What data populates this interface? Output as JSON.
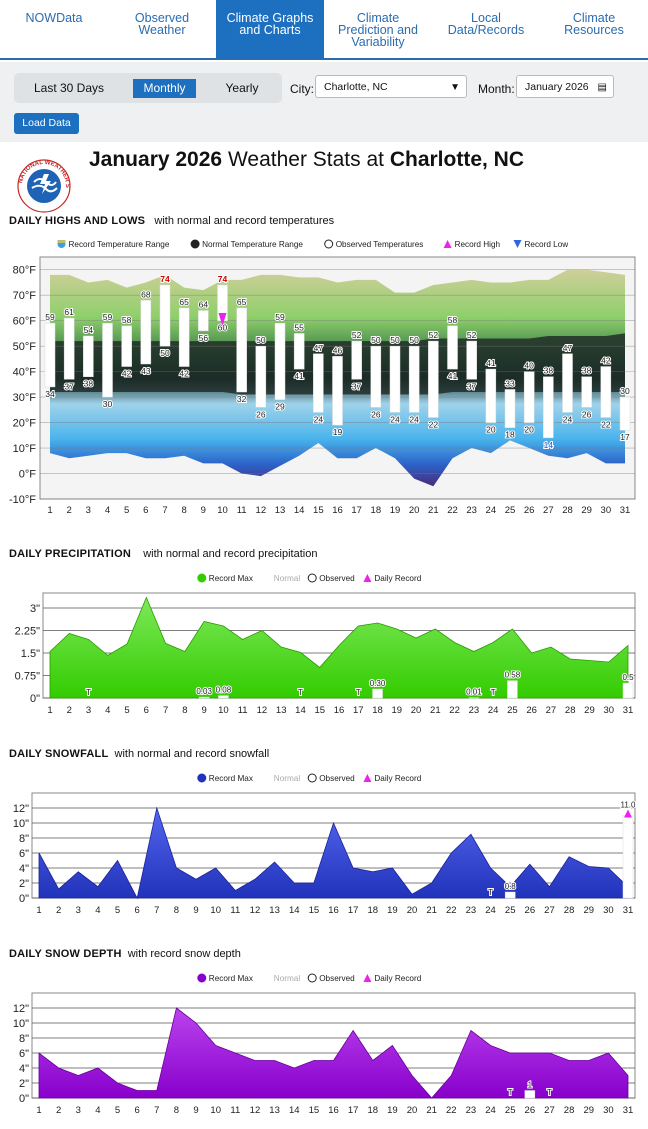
{
  "nav": {
    "tabs": [
      {
        "label": "NOWData",
        "active": false
      },
      {
        "label": "Observed Weather",
        "active": false
      },
      {
        "label": "Climate Graphs and Charts",
        "active": true
      },
      {
        "label": "Climate Prediction and Variability",
        "active": false
      },
      {
        "label": "Local Data/Records",
        "active": false
      },
      {
        "label": "Climate Resources",
        "active": false
      }
    ]
  },
  "controls": {
    "modes": [
      "Last 30 Days",
      "Monthly",
      "Yearly"
    ],
    "active_mode": "Monthly",
    "city_label": "City:",
    "city_value": "Charlotte, NC",
    "month_label": "Month:",
    "month_value": "January 2026",
    "load_label": "Load Data"
  },
  "title": {
    "month": "January 2026",
    "middle": "Weather Stats at",
    "city": "Charlotte, NC"
  },
  "logo": {
    "text": "NATIONAL WEATHER SERVICE"
  },
  "sections": {
    "temp": {
      "heading": "DAILY HIGHS AND LOWS",
      "sub": "with normal and record temperatures"
    },
    "precip": {
      "heading": "DAILY PRECIPITATION",
      "sub": "with normal and record precipitation"
    },
    "snow": {
      "heading": "DAILY SNOWFALL",
      "sub": "with normal and record snowfall"
    },
    "depth": {
      "heading": "DAILY SNOW DEPTH",
      "sub": "with record snow depth"
    }
  },
  "colors": {
    "accent": "#1d6fbf",
    "precip": "#33cc00",
    "snowfall": "#2233bb",
    "snowdepth": "#8800cc",
    "record_marker": "#ee22ee",
    "record_low_marker": "#3366dd"
  },
  "chart_data": [
    {
      "type": "bar",
      "id": "temp",
      "legend": [
        "Record Temperature Range",
        "Normal Temperature Range",
        "Observed Temperatures",
        "Record High",
        "Record Low"
      ],
      "x": [
        1,
        2,
        3,
        4,
        5,
        6,
        7,
        8,
        9,
        10,
        11,
        12,
        13,
        14,
        15,
        16,
        17,
        18,
        19,
        20,
        21,
        22,
        23,
        24,
        25,
        26,
        27,
        28,
        29,
        30,
        31
      ],
      "yticks": [
        "80°F",
        "70°F",
        "60°F",
        "50°F",
        "40°F",
        "30°F",
        "20°F",
        "10°F",
        "0°F",
        "-10°F"
      ],
      "ylim": [
        -10,
        85
      ],
      "highs": [
        59,
        61,
        54,
        59,
        58,
        68,
        74,
        65,
        64,
        74,
        65,
        50,
        59,
        55,
        47,
        46,
        52,
        50,
        50,
        50,
        52,
        58,
        52,
        41,
        33,
        40,
        38,
        47,
        38,
        42,
        30
      ],
      "lows": [
        34,
        37,
        38,
        30,
        42,
        43,
        50,
        42,
        56,
        60,
        32,
        26,
        29,
        41,
        24,
        19,
        37,
        26,
        24,
        24,
        22,
        41,
        37,
        20,
        18,
        20,
        14,
        24,
        26,
        22,
        17
      ],
      "record_high_days": [
        7,
        10
      ],
      "record_low_days": [
        27
      ],
      "record_max": [
        78,
        78,
        75,
        76,
        73,
        75,
        78,
        73,
        72,
        76,
        76,
        78,
        78,
        77,
        77,
        75,
        76,
        76,
        71,
        71,
        74,
        75,
        76,
        75,
        75,
        76,
        76,
        80,
        80,
        79,
        78
      ],
      "record_min": [
        8,
        6,
        7,
        8,
        8,
        6,
        6,
        7,
        4,
        4,
        0,
        -1,
        3,
        7,
        12,
        6,
        6,
        10,
        6,
        -2,
        -5,
        6,
        10,
        8,
        13,
        10,
        7,
        6,
        8,
        4,
        4
      ],
      "normal_high": [
        52,
        52,
        52,
        52,
        52,
        52,
        52,
        52,
        52,
        52,
        52,
        52,
        52,
        52,
        52,
        52,
        52,
        52,
        52,
        52,
        53,
        53,
        53,
        53,
        53,
        53,
        54,
        54,
        54,
        54,
        55
      ],
      "normal_low": [
        32,
        32,
        32,
        32,
        32,
        32,
        32,
        32,
        32,
        32,
        31,
        31,
        31,
        31,
        31,
        31,
        31,
        31,
        31,
        31,
        31,
        32,
        32,
        32,
        32,
        32,
        32,
        32,
        32,
        32,
        32
      ]
    },
    {
      "type": "area",
      "id": "precip",
      "legend": [
        "Record Max",
        "Normal",
        "Observed",
        "Daily Record"
      ],
      "x": [
        1,
        2,
        3,
        4,
        5,
        6,
        7,
        8,
        9,
        10,
        11,
        12,
        13,
        14,
        15,
        16,
        17,
        18,
        19,
        20,
        21,
        22,
        23,
        24,
        25,
        26,
        27,
        28,
        29,
        30,
        31
      ],
      "yticks": [
        "3\"",
        "2.25\"",
        "1.5\"",
        "0.75\"",
        "0\""
      ],
      "ylim": [
        0,
        3.5
      ],
      "record_max": [
        1.55,
        2.15,
        1.95,
        1.42,
        1.8,
        3.35,
        1.82,
        1.55,
        2.55,
        2.4,
        1.95,
        2.25,
        1.7,
        1.52,
        1.02,
        1.75,
        2.4,
        2.5,
        2.3,
        2.0,
        2.3,
        1.85,
        1.55,
        1.85,
        2.3,
        1.5,
        1.7,
        1.3,
        1.25,
        1.2,
        1.75
      ],
      "observed": [
        0,
        0,
        "T",
        0,
        0,
        0,
        0,
        0,
        0.03,
        0.08,
        0,
        0,
        0,
        "T",
        0,
        0,
        "T",
        0.3,
        0,
        0,
        0,
        0,
        0.01,
        "T",
        0.58,
        0,
        0,
        0,
        0,
        0,
        0.5
      ],
      "labels": {
        "3": "T",
        "9": "0.03",
        "10": "0.08",
        "14": "T",
        "17": "T",
        "18": "0.30",
        "23": "0.01",
        "24": "T",
        "25": "0.58",
        "31": "0.5"
      }
    },
    {
      "type": "area",
      "id": "snow",
      "legend": [
        "Record Max",
        "Normal",
        "Observed",
        "Daily Record"
      ],
      "x": [
        1,
        2,
        3,
        4,
        5,
        6,
        7,
        8,
        9,
        10,
        11,
        12,
        13,
        14,
        15,
        16,
        17,
        18,
        19,
        20,
        21,
        22,
        23,
        24,
        25,
        26,
        27,
        28,
        29,
        30,
        31
      ],
      "yticks": [
        "12\"",
        "10\"",
        "8\"",
        "6\"",
        "4\"",
        "2\"",
        "0\""
      ],
      "ylim": [
        0,
        14
      ],
      "record_max": [
        6,
        1.2,
        3.5,
        1.5,
        5,
        0,
        12,
        4,
        2.5,
        4,
        1,
        2.5,
        4.8,
        2,
        2,
        10,
        4,
        3.5,
        4,
        0.5,
        2,
        6,
        8.5,
        4,
        1.5,
        4.5,
        1.5,
        5.5,
        4.2,
        4,
        1.5
      ],
      "observed": [
        0,
        0,
        0,
        0,
        0,
        0,
        0,
        0,
        0,
        0,
        0,
        0,
        0,
        0,
        0,
        0,
        0,
        0,
        0,
        0,
        0,
        0,
        0,
        "T",
        0.8,
        0,
        0,
        0,
        0,
        0,
        11.0
      ],
      "labels": {
        "24": "T",
        "25": "0.8",
        "31": "11.0"
      },
      "record_days": [
        31
      ]
    },
    {
      "type": "area",
      "id": "depth",
      "legend": [
        "Record Max",
        "Normal",
        "Observed",
        "Daily Record"
      ],
      "x": [
        1,
        2,
        3,
        4,
        5,
        6,
        7,
        8,
        9,
        10,
        11,
        12,
        13,
        14,
        15,
        16,
        17,
        18,
        19,
        20,
        21,
        22,
        23,
        24,
        25,
        26,
        27,
        28,
        29,
        30,
        31
      ],
      "yticks": [
        "12\"",
        "10\"",
        "8\"",
        "6\"",
        "4\"",
        "2\"",
        "0\""
      ],
      "ylim": [
        0,
        14
      ],
      "record_max": [
        6,
        4,
        3,
        4,
        2,
        1,
        1,
        12,
        10,
        7,
        6,
        5,
        5,
        4,
        5,
        5,
        9,
        5,
        7,
        3,
        0,
        3,
        9,
        7,
        6,
        6,
        6,
        5,
        5,
        6,
        3
      ],
      "observed": [
        0,
        0,
        0,
        0,
        0,
        0,
        0,
        0,
        0,
        0,
        0,
        0,
        0,
        0,
        0,
        0,
        0,
        0,
        0,
        0,
        0,
        0,
        0,
        0,
        "T",
        1,
        "T",
        0,
        0,
        0,
        0
      ],
      "labels": {
        "25": "T",
        "26": "1",
        "27": "T"
      }
    }
  ]
}
